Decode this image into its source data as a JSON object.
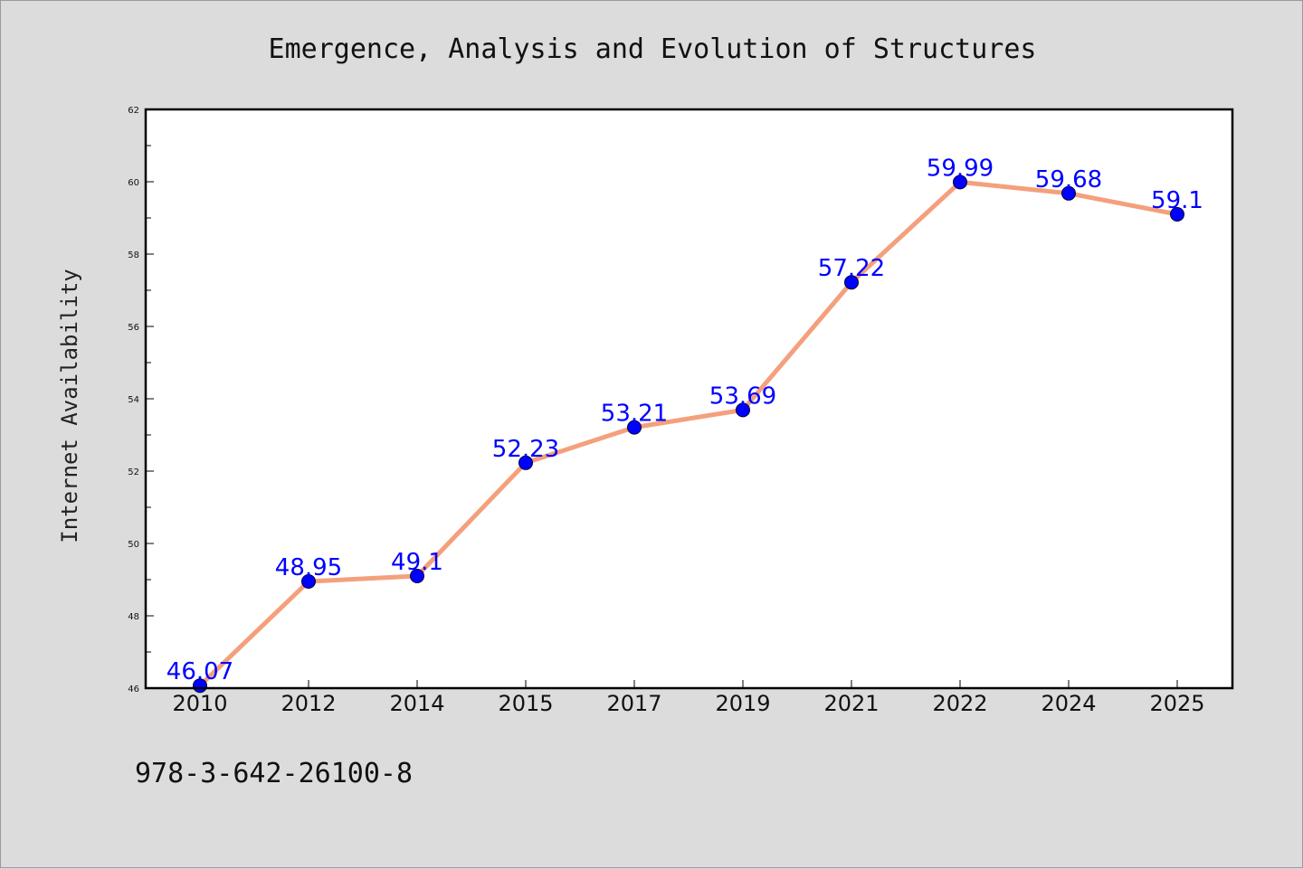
{
  "chart_data": {
    "type": "line",
    "title": "Emergence, Analysis and Evolution of Structures",
    "xlabel": "",
    "ylabel": "Internet Availability",
    "categories": [
      "2010",
      "2012",
      "2014",
      "2015",
      "2017",
      "2019",
      "2021",
      "2022",
      "2024",
      "2025"
    ],
    "series": [
      {
        "values": [
          46.07,
          48.95,
          49.1,
          52.23,
          53.21,
          53.69,
          57.22,
          59.99,
          59.68,
          59.1
        ],
        "labels": [
          "46.07",
          "48.95",
          "49.1",
          "52.23",
          "53.21",
          "53.69",
          "57.22",
          "59.99",
          "59.68",
          "59.1"
        ]
      }
    ],
    "ylim": [
      46,
      62
    ],
    "yticks": [
      "46",
      "48",
      "50",
      "52",
      "54",
      "56",
      "58",
      "60",
      "62"
    ],
    "grid": false,
    "legend": "none",
    "line_color": "#f4a07c",
    "marker_color": "#0000ff",
    "label_color": "#0000ff"
  },
  "footer": {
    "isbn": "978-3-642-26100-8"
  }
}
